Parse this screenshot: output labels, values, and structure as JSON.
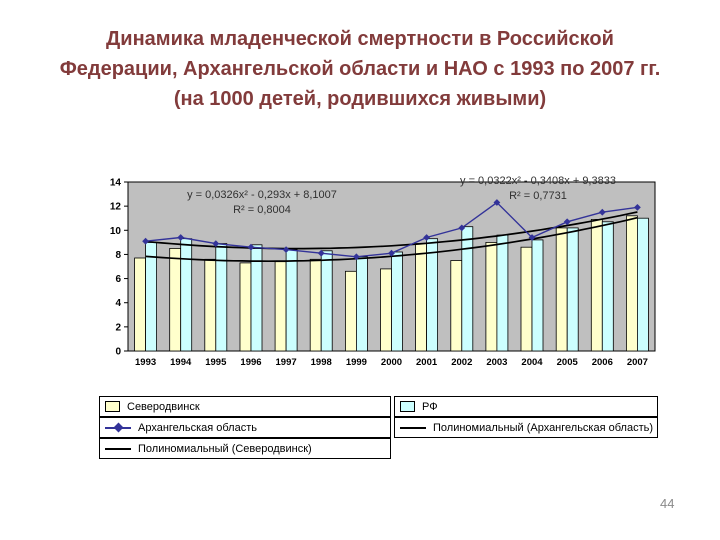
{
  "title": {
    "line1": "Динамика младенческой смертности в Российской",
    "line2": "Федерации, Архангельской области и НАО с 1993 по 2007 гг.",
    "line3": "(на 1000 детей, родившихся живыми)"
  },
  "page_number": "44",
  "colors": {
    "title_text": "#823B3B",
    "plot_background": "#BFBFBF",
    "bar_severodvinsk": "#FFFFCC",
    "bar_rf": "#CCFFFF",
    "line_arkhangelsk": "#333399",
    "trendline": "#000000"
  },
  "chart_data": {
    "type": "bar",
    "title": "",
    "xlabel": "",
    "ylabel": "",
    "ylim": [
      0,
      14
    ],
    "ytick": 2,
    "grid": false,
    "legend_position": "bottom",
    "categories": [
      "1993",
      "1994",
      "1995",
      "1996",
      "1997",
      "1998",
      "1999",
      "2000",
      "2001",
      "2002",
      "2003",
      "2004",
      "2005",
      "2006",
      "2007"
    ],
    "series": [
      {
        "name": "Северодвинск",
        "type": "bar",
        "color": "#FFFFCC",
        "values": [
          7.7,
          8.5,
          7.6,
          7.3,
          7.4,
          7.6,
          6.6,
          6.8,
          8.9,
          7.5,
          9.0,
          8.6,
          10.2,
          10.9,
          11.2
        ]
      },
      {
        "name": "РФ",
        "type": "bar",
        "color": "#CCFFFF",
        "values": [
          9.0,
          9.3,
          8.9,
          8.8,
          8.4,
          8.3,
          7.8,
          8.2,
          9.3,
          10.3,
          9.6,
          9.2,
          10.2,
          10.7,
          11.0
        ]
      },
      {
        "name": "Архангельская область",
        "type": "line",
        "marker": "diamond",
        "color": "#333399",
        "values": [
          9.1,
          9.4,
          8.9,
          8.6,
          8.4,
          8.1,
          7.8,
          8.1,
          9.4,
          10.2,
          12.3,
          9.4,
          10.7,
          11.5,
          11.9
        ]
      }
    ],
    "trendlines": [
      {
        "name": "Полиномиальный (Архангельская область)",
        "equation": "y = 0,0322x² - 0,3408x + 9,3833",
        "r2": "R² = 0,7731",
        "coeffs": [
          0.0322,
          -0.3408,
          9.3833
        ],
        "color": "#000000"
      },
      {
        "name": "Полиномиальный (Северодвинск)",
        "equation": "y = 0,0326x² - 0,293x + 8,1007",
        "r2": "R² = 0,8004",
        "coeffs": [
          0.0326,
          -0.293,
          8.1007
        ],
        "color": "#000000"
      }
    ]
  },
  "legend": {
    "items": [
      {
        "label": "Северодвинск",
        "swatch": "bar",
        "color": "#FFFFCC"
      },
      {
        "label": "РФ",
        "swatch": "bar",
        "color": "#CCFFFF"
      },
      {
        "label": "Архангельская область",
        "swatch": "line-diamond",
        "color": "#333399"
      },
      {
        "label": "Полиномиальный (Архангельская область)",
        "swatch": "line",
        "color": "#000000"
      },
      {
        "label": "Полиномиальный (Северодвинск)",
        "swatch": "line",
        "color": "#000000"
      }
    ]
  }
}
